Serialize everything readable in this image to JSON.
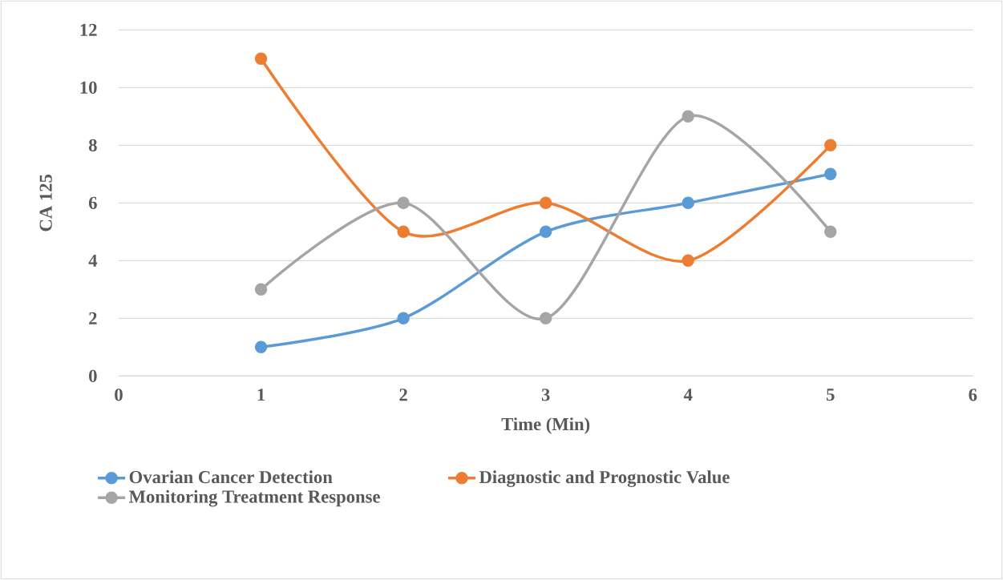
{
  "chart_data": {
    "type": "line",
    "xlabel": "Time (Min)",
    "ylabel": "CA 125",
    "x": [
      1,
      2,
      3,
      4,
      5
    ],
    "series": [
      {
        "name": "Ovarian Cancer Detection",
        "color": "#5b9bd5",
        "values": [
          1,
          2,
          5,
          6,
          7
        ]
      },
      {
        "name": "Diagnostic and Prognostic Value",
        "color": "#ed7d31",
        "values": [
          11,
          5,
          6,
          4,
          8
        ]
      },
      {
        "name": "Monitoring Treatment Response",
        "color": "#a5a5a5",
        "values": [
          3,
          6,
          2,
          9,
          5
        ]
      }
    ],
    "xlim": [
      0,
      6
    ],
    "ylim": [
      0,
      12
    ],
    "xticks": [
      0,
      1,
      2,
      3,
      4,
      5,
      6
    ],
    "yticks": [
      0,
      2,
      4,
      6,
      8,
      10,
      12
    ],
    "grid": "y",
    "legend": "bottom",
    "marker": "circle"
  }
}
